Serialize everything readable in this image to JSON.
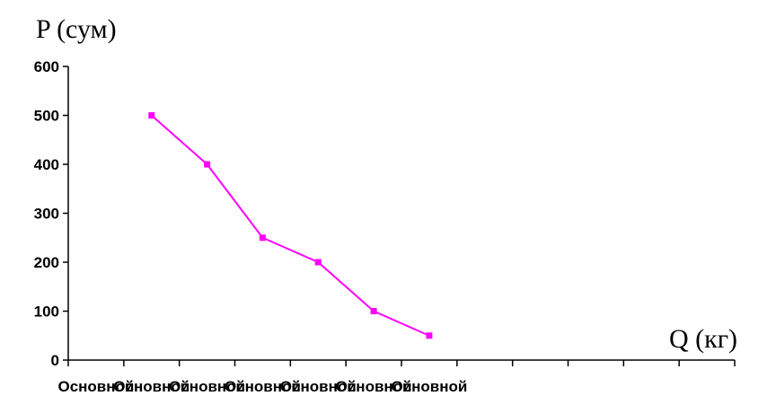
{
  "chart_data": {
    "type": "line",
    "ylabel": "P (сум)",
    "xlabel": "Q (кг)",
    "ylim": [
      0,
      600
    ],
    "yticks": [
      0,
      100,
      200,
      300,
      400,
      500,
      600
    ],
    "x_category_count": 12,
    "x_tick_labels": [
      "Основной",
      "Основной",
      "Основной",
      "Основной",
      "Основной",
      "Основной",
      "Основной"
    ],
    "color": "#ff00ff",
    "grid": false,
    "series": [
      {
        "x": [
          2,
          3,
          4,
          5,
          6,
          7
        ],
        "values": [
          500,
          400,
          250,
          200,
          100,
          50
        ]
      }
    ]
  }
}
